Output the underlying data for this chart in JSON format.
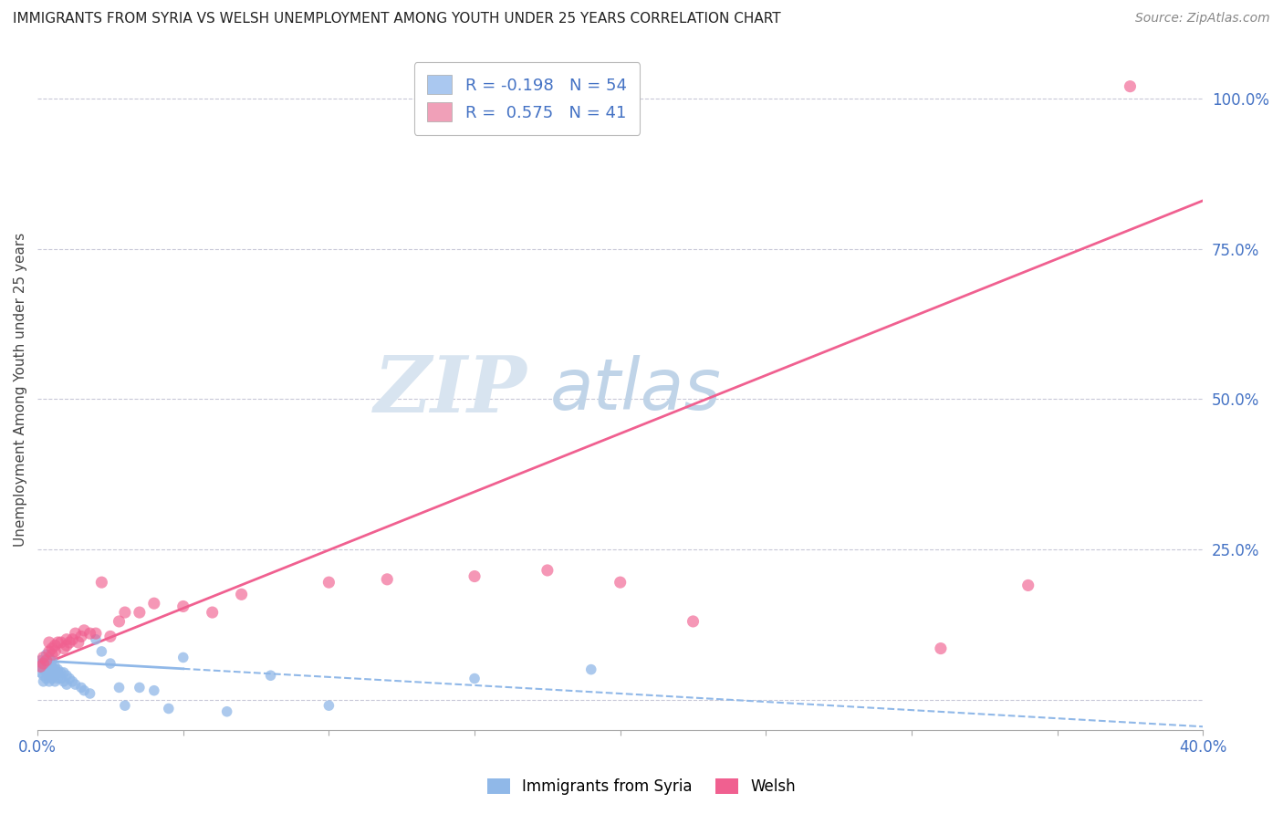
{
  "title": "IMMIGRANTS FROM SYRIA VS WELSH UNEMPLOYMENT AMONG YOUTH UNDER 25 YEARS CORRELATION CHART",
  "source": "Source: ZipAtlas.com",
  "ylabel": "Unemployment Among Youth under 25 years",
  "xlim": [
    0.0,
    0.4
  ],
  "ylim": [
    -0.05,
    1.08
  ],
  "right_yticks": [
    0.0,
    0.25,
    0.5,
    0.75,
    1.0
  ],
  "right_ytick_labels": [
    "",
    "25.0%",
    "50.0%",
    "75.0%",
    "100.0%"
  ],
  "legend_entries": [
    {
      "label_r": "R = -0.198",
      "label_n": "N = 54",
      "color": "#aac8f0"
    },
    {
      "label_r": "R =  0.575",
      "label_n": "N = 41",
      "color": "#f0a0b8"
    }
  ],
  "legend_bottom": [
    "Immigrants from Syria",
    "Welsh"
  ],
  "blue_scatter_x": [
    0.001,
    0.001,
    0.001,
    0.002,
    0.002,
    0.002,
    0.002,
    0.003,
    0.003,
    0.003,
    0.003,
    0.003,
    0.004,
    0.004,
    0.004,
    0.004,
    0.004,
    0.005,
    0.005,
    0.005,
    0.005,
    0.006,
    0.006,
    0.006,
    0.006,
    0.007,
    0.007,
    0.007,
    0.008,
    0.008,
    0.009,
    0.009,
    0.01,
    0.01,
    0.011,
    0.012,
    0.013,
    0.015,
    0.016,
    0.018,
    0.02,
    0.022,
    0.025,
    0.028,
    0.03,
    0.035,
    0.04,
    0.045,
    0.05,
    0.065,
    0.08,
    0.1,
    0.15,
    0.19
  ],
  "blue_scatter_y": [
    0.065,
    0.055,
    0.045,
    0.06,
    0.05,
    0.04,
    0.03,
    0.075,
    0.065,
    0.055,
    0.045,
    0.035,
    0.07,
    0.06,
    0.05,
    0.04,
    0.03,
    0.065,
    0.055,
    0.045,
    0.035,
    0.055,
    0.05,
    0.04,
    0.03,
    0.05,
    0.045,
    0.035,
    0.045,
    0.035,
    0.045,
    0.03,
    0.04,
    0.025,
    0.035,
    0.03,
    0.025,
    0.02,
    0.015,
    0.01,
    0.1,
    0.08,
    0.06,
    0.02,
    -0.01,
    0.02,
    0.015,
    -0.015,
    0.07,
    -0.02,
    0.04,
    -0.01,
    0.035,
    0.05
  ],
  "pink_scatter_x": [
    0.001,
    0.002,
    0.002,
    0.003,
    0.004,
    0.004,
    0.005,
    0.005,
    0.006,
    0.006,
    0.007,
    0.008,
    0.009,
    0.01,
    0.01,
    0.011,
    0.012,
    0.013,
    0.014,
    0.015,
    0.016,
    0.018,
    0.02,
    0.022,
    0.025,
    0.028,
    0.03,
    0.035,
    0.04,
    0.05,
    0.06,
    0.07,
    0.1,
    0.12,
    0.15,
    0.175,
    0.2,
    0.225,
    0.31,
    0.34,
    0.375
  ],
  "pink_scatter_y": [
    0.055,
    0.06,
    0.07,
    0.065,
    0.08,
    0.095,
    0.085,
    0.075,
    0.09,
    0.08,
    0.095,
    0.095,
    0.085,
    0.09,
    0.1,
    0.095,
    0.1,
    0.11,
    0.095,
    0.105,
    0.115,
    0.11,
    0.11,
    0.195,
    0.105,
    0.13,
    0.145,
    0.145,
    0.16,
    0.155,
    0.145,
    0.175,
    0.195,
    0.2,
    0.205,
    0.215,
    0.195,
    0.13,
    0.085,
    0.19,
    1.02
  ],
  "blue_line_x": [
    0.0,
    0.4
  ],
  "blue_line_y": [
    0.065,
    -0.045
  ],
  "pink_line_x": [
    0.0,
    0.4
  ],
  "pink_line_y": [
    0.055,
    0.83
  ],
  "title_fontsize": 11,
  "source_fontsize": 10,
  "axis_color": "#4472c4",
  "pink_color": "#f06090",
  "blue_color": "#90b8e8",
  "grid_color": "#c8c8d8",
  "background_color": "#ffffff"
}
